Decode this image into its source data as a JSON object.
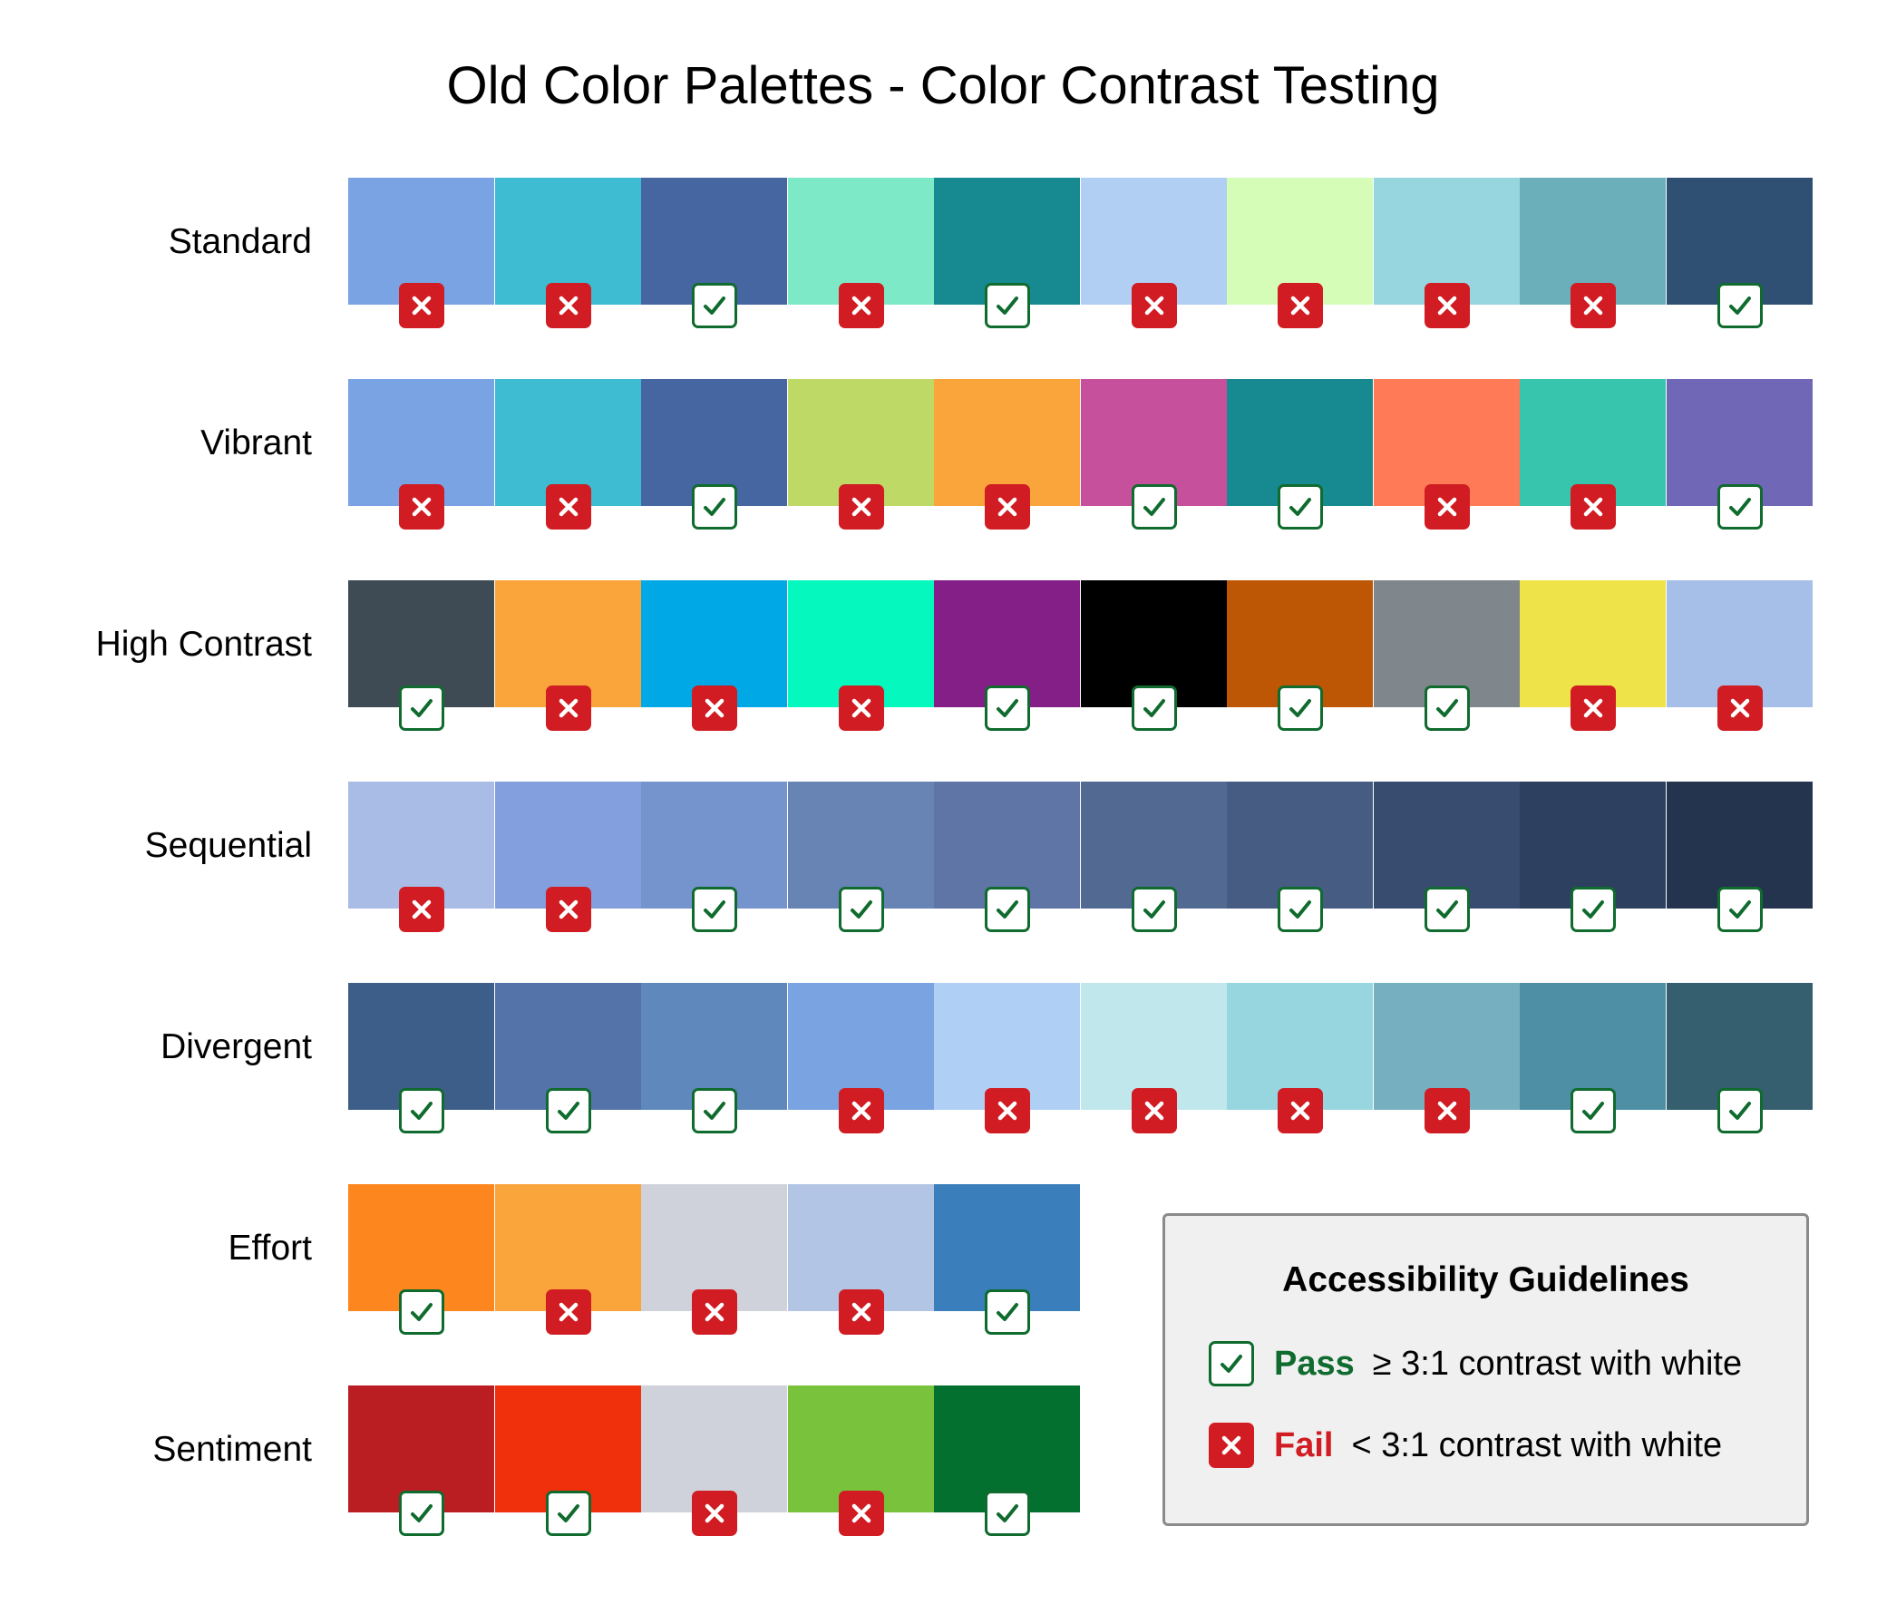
{
  "title": "Old Color Palettes - Color Contrast Testing",
  "palettes": [
    {
      "label": "Standard",
      "swatches": [
        {
          "color": "#79a3e3",
          "status": "fail"
        },
        {
          "color": "#3ebcd2",
          "status": "fail"
        },
        {
          "color": "#4566a1",
          "status": "pass"
        },
        {
          "color": "#7ee9c6",
          "status": "fail"
        },
        {
          "color": "#178a91",
          "status": "pass"
        },
        {
          "color": "#b0cff3",
          "status": "fail"
        },
        {
          "color": "#d5fdb8",
          "status": "fail"
        },
        {
          "color": "#98d6df",
          "status": "fail"
        },
        {
          "color": "#6aafb9",
          "status": "fail"
        },
        {
          "color": "#2f5073",
          "status": "pass"
        }
      ]
    },
    {
      "label": "Vibrant",
      "swatches": [
        {
          "color": "#79a3e3",
          "status": "fail"
        },
        {
          "color": "#3ebcd2",
          "status": "fail"
        },
        {
          "color": "#4566a1",
          "status": "pass"
        },
        {
          "color": "#bfd966",
          "status": "fail"
        },
        {
          "color": "#f9a53b",
          "status": "fail"
        },
        {
          "color": "#c7509d",
          "status": "pass"
        },
        {
          "color": "#178a91",
          "status": "pass"
        },
        {
          "color": "#ff7a57",
          "status": "fail"
        },
        {
          "color": "#37c6ad",
          "status": "fail"
        },
        {
          "color": "#7067b6",
          "status": "pass"
        }
      ]
    },
    {
      "label": "High Contrast",
      "swatches": [
        {
          "color": "#3f4b54",
          "status": "pass"
        },
        {
          "color": "#f9a53b",
          "status": "fail"
        },
        {
          "color": "#00a9e6",
          "status": "fail"
        },
        {
          "color": "#05f8bd",
          "status": "fail"
        },
        {
          "color": "#841f87",
          "status": "pass"
        },
        {
          "color": "#000000",
          "status": "pass"
        },
        {
          "color": "#bd5705",
          "status": "pass"
        },
        {
          "color": "#7f868c",
          "status": "pass"
        },
        {
          "color": "#eee349",
          "status": "fail"
        },
        {
          "color": "#a6bfe8",
          "status": "fail"
        }
      ]
    },
    {
      "label": "Sequential",
      "swatches": [
        {
          "color": "#a8bce5",
          "status": "fail"
        },
        {
          "color": "#849fdd",
          "status": "fail"
        },
        {
          "color": "#7593cc",
          "status": "pass"
        },
        {
          "color": "#6784b4",
          "status": "pass"
        },
        {
          "color": "#5e75a6",
          "status": "pass"
        },
        {
          "color": "#526a92",
          "status": "pass"
        },
        {
          "color": "#465c82",
          "status": "pass"
        },
        {
          "color": "#384c70",
          "status": "pass"
        },
        {
          "color": "#2d405f",
          "status": "pass"
        },
        {
          "color": "#24344f",
          "status": "pass"
        }
      ]
    },
    {
      "label": "Divergent",
      "swatches": [
        {
          "color": "#3e5e8a",
          "status": "pass"
        },
        {
          "color": "#5373a9",
          "status": "pass"
        },
        {
          "color": "#5f88bd",
          "status": "pass"
        },
        {
          "color": "#7aa4e1",
          "status": "fail"
        },
        {
          "color": "#b0cff4",
          "status": "fail"
        },
        {
          "color": "#c0e8ec",
          "status": "fail"
        },
        {
          "color": "#98d6df",
          "status": "fail"
        },
        {
          "color": "#76afc0",
          "status": "fail"
        },
        {
          "color": "#4f8fa6",
          "status": "pass"
        },
        {
          "color": "#355e6e",
          "status": "pass"
        }
      ]
    },
    {
      "label": "Effort",
      "swatches": [
        {
          "color": "#fd861e",
          "status": "pass"
        },
        {
          "color": "#f9a53b",
          "status": "fail"
        },
        {
          "color": "#cfd2da",
          "status": "fail"
        },
        {
          "color": "#b2c5e4",
          "status": "fail"
        },
        {
          "color": "#3a7fbb",
          "status": "pass"
        }
      ]
    },
    {
      "label": "Sentiment",
      "swatches": [
        {
          "color": "#ba1d22",
          "status": "pass"
        },
        {
          "color": "#f02f0c",
          "status": "pass"
        },
        {
          "color": "#cfd2da",
          "status": "fail"
        },
        {
          "color": "#79c23c",
          "status": "fail"
        },
        {
          "color": "#047030",
          "status": "pass"
        }
      ]
    }
  ],
  "legend": {
    "title": "Accessibility Guidelines",
    "pass": {
      "word": "Pass",
      "symbol": "≥",
      "description": "3:1 contrast with white",
      "color": "#0f6b2e"
    },
    "fail": {
      "word": "Fail",
      "symbol": "<",
      "description": "3:1 contrast with white",
      "color": "#d01c22"
    }
  }
}
